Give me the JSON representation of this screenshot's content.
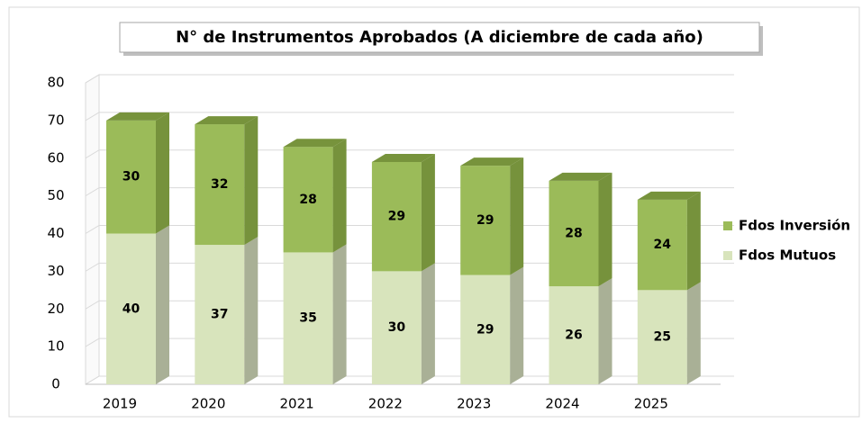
{
  "chart_data": {
    "type": "bar3d_stacked",
    "title": "N° de Instrumentos  Aprobados  (A diciembre  de cada  año)",
    "categories": [
      "2019",
      "2020",
      "2021",
      "2022",
      "2023",
      "2024",
      "2025"
    ],
    "series": [
      {
        "name": "Fdos Mutuos",
        "color": "#d8e4bc",
        "values": [
          40,
          37,
          35,
          30,
          29,
          26,
          25
        ]
      },
      {
        "name": "Fdos Inversión",
        "color": "#9bbb59",
        "values": [
          30,
          32,
          28,
          29,
          29,
          28,
          24
        ]
      }
    ],
    "ylim": [
      0,
      80
    ],
    "yticks": [
      0,
      10,
      20,
      30,
      40,
      50,
      60,
      70,
      80
    ],
    "grid": true,
    "legend": "right"
  }
}
